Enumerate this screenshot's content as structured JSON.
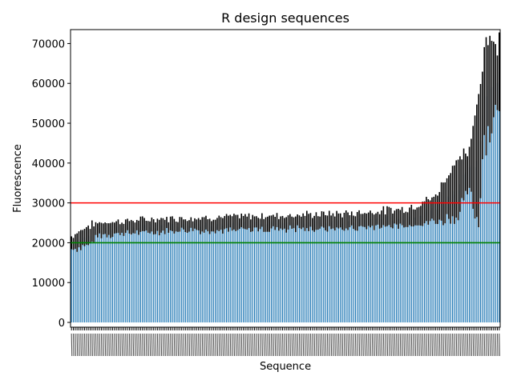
{
  "chart_data": {
    "type": "bar",
    "title": "R design sequences",
    "xlabel": "Sequence",
    "ylabel": "Fluorescence",
    "ylim": [
      -1200,
      73500
    ],
    "yticks": [
      0,
      10000,
      20000,
      30000,
      40000,
      50000,
      60000,
      70000
    ],
    "yticklabels": [
      "0",
      "10000",
      "20000",
      "30000",
      "40000",
      "50000",
      "60000",
      "70000"
    ],
    "grid": false,
    "legend": "none",
    "bar_color": "#1f77b4",
    "error_bar_color": "#000000",
    "n_sequences": 230,
    "values_profile": [
      {
        "index": 0,
        "value": 20000,
        "error": 1500
      },
      {
        "index": 8,
        "value": 21500,
        "error": 2500
      },
      {
        "index": 15,
        "value": 23500,
        "error": 1500
      },
      {
        "index": 50,
        "value": 24500,
        "error": 1500
      },
      {
        "index": 100,
        "value": 25000,
        "error": 1600
      },
      {
        "index": 150,
        "value": 25500,
        "error": 1800
      },
      {
        "index": 180,
        "value": 26500,
        "error": 2000
      },
      {
        "index": 195,
        "value": 28500,
        "error": 3000
      },
      {
        "index": 205,
        "value": 33000,
        "error": 7000
      },
      {
        "index": 213,
        "value": 38000,
        "error": 4500
      },
      {
        "index": 218,
        "value": 41000,
        "error": 15000
      },
      {
        "index": 221,
        "value": 58000,
        "error": 12000
      },
      {
        "index": 225,
        "value": 60000,
        "error": 10000
      },
      {
        "index": 229,
        "value": 62000,
        "error": 8000
      }
    ],
    "hlines": [
      {
        "y": 30000,
        "color": "#ff0000"
      },
      {
        "y": 20000,
        "color": "#008000"
      }
    ]
  }
}
